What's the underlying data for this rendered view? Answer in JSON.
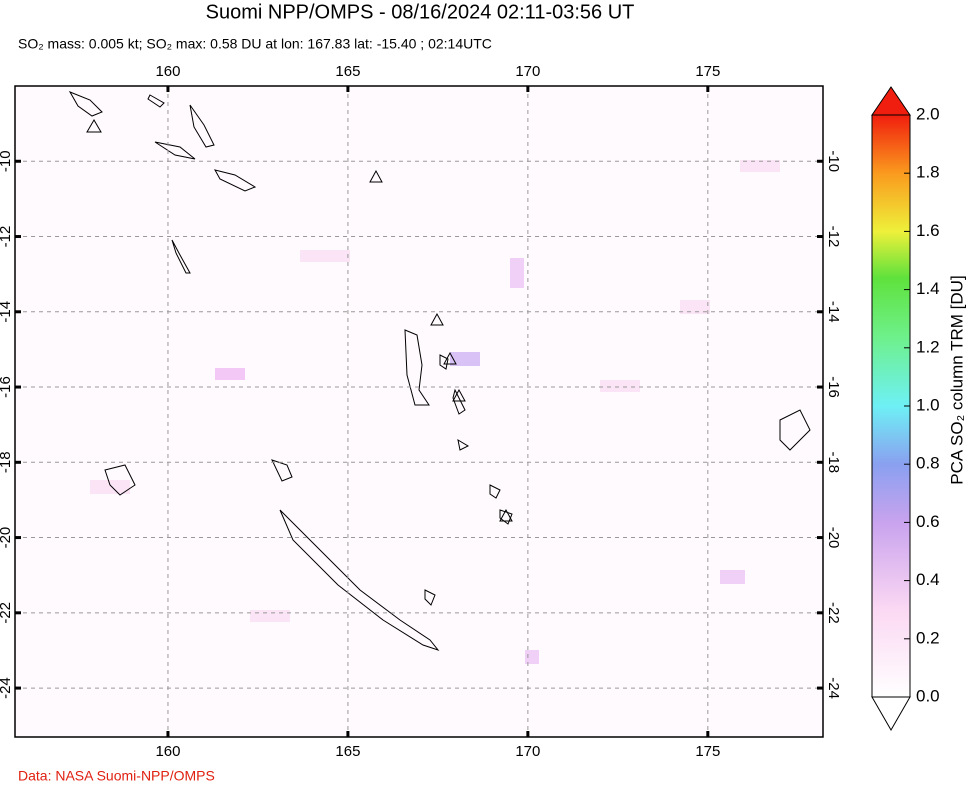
{
  "chart_data": {
    "type": "map",
    "title": "Suomi NPP/OMPS - 08/16/2024 02:11-03:56 UT",
    "subtitle": "SO₂ mass: 0.005 kt; SO₂ max: 0.58 DU at lon: 167.83 lat: -15.40 ; 02:14UTC",
    "xlim": [
      155.75,
      178.2
    ],
    "xticks": [
      160,
      165,
      170,
      175
    ],
    "ylim": [
      -25.3,
      -8.0
    ],
    "yticks": [
      -10,
      -12,
      -14,
      -16,
      -18,
      -20,
      -22,
      -24
    ],
    "grid": true,
    "colorbar": {
      "label": "PCA SO₂ column TRM [DU]",
      "lim": [
        0,
        2
      ],
      "ticks": [
        {
          "value": 0,
          "label": "0.0"
        },
        0.2,
        0.4,
        0.6,
        0.8,
        {
          "value": 1,
          "label": "1.0"
        },
        1.2,
        1.4,
        1.6,
        1.8,
        {
          "value": 2,
          "label": "2.0"
        }
      ]
    },
    "source": "Data: NASA Suomi-NPP/OMPS"
  }
}
